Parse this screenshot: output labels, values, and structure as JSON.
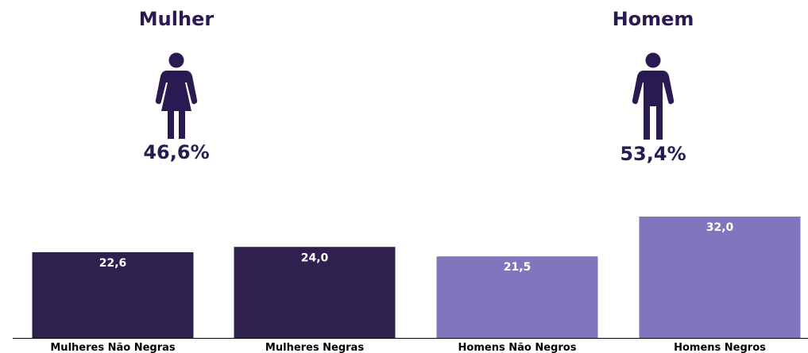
{
  "groups": {
    "female": {
      "heading": "Mulher",
      "percent": "46,6%",
      "icon": "female-person-icon"
    },
    "male": {
      "heading": "Homem",
      "percent": "53,4%",
      "icon": "male-person-icon"
    }
  },
  "colors": {
    "dark": "#2e2150",
    "light": "#8176bd",
    "text": "#2a1a52",
    "axis": "#000000",
    "value_text": "#ffffff"
  },
  "chart_data": {
    "type": "bar",
    "categories": [
      "Mulheres Não Negras",
      "Mulheres Negras",
      "Homens Não Negros",
      "Homens Negros"
    ],
    "values": [
      22.6,
      24.0,
      21.5,
      32.0
    ],
    "value_labels": [
      "22,6",
      "24,0",
      "21,5",
      "32,0"
    ],
    "bar_colors": [
      "#2e2150",
      "#2e2150",
      "#8176bd",
      "#8176bd"
    ],
    "title": "",
    "xlabel": "",
    "ylabel": "",
    "ylim": [
      0,
      32.0
    ],
    "grid": false,
    "legend": "none"
  }
}
